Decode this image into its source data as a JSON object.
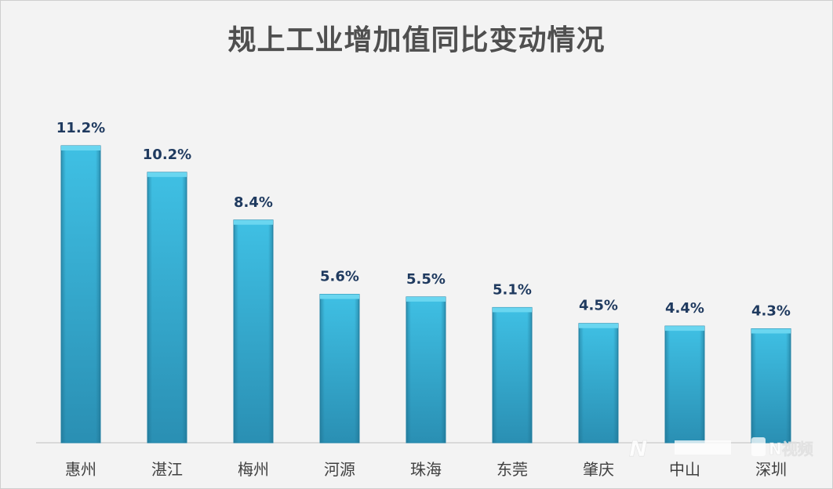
{
  "chart_data": {
    "type": "bar",
    "title": "规上工业增加值同比变动情况",
    "categories": [
      "惠州",
      "湛江",
      "梅州",
      "河源",
      "珠海",
      "东莞",
      "肇庆",
      "中山",
      "深圳"
    ],
    "values": [
      11.2,
      10.2,
      8.4,
      5.6,
      5.5,
      5.1,
      4.5,
      4.4,
      4.3
    ],
    "value_labels": [
      "11.2%",
      "10.2%",
      "8.4%",
      "5.6%",
      "5.5%",
      "5.1%",
      "4.5%",
      "4.4%",
      "4.3%"
    ],
    "xlabel": "",
    "ylabel": "",
    "ylim": [
      0,
      11.2
    ],
    "grid": false,
    "legend": "none",
    "colors": {
      "bar": "#36b3d8",
      "bar_top": "#6ad6f0",
      "label": "#1f3a5f",
      "axis_text": "#404040"
    }
  },
  "watermark": {
    "text_left": "N",
    "text_right": "N视频"
  }
}
